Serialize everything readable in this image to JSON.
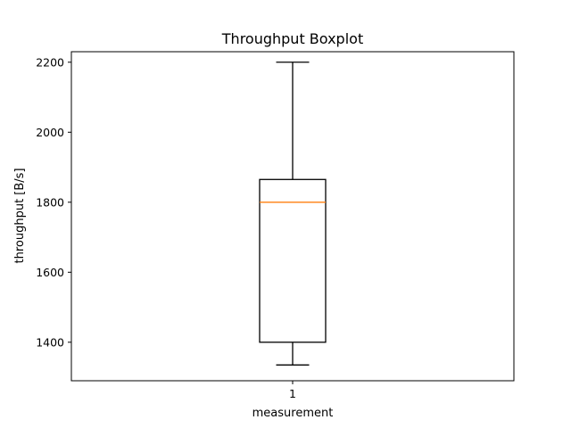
{
  "chart_data": {
    "type": "box",
    "title": "Throughput Boxplot",
    "xlabel": "measurement",
    "ylabel": "throughput [B/s]",
    "ylim": [
      1290,
      2230
    ],
    "yticks": [
      1400,
      1600,
      1800,
      2000,
      2200
    ],
    "grid": false,
    "categories": [
      "1"
    ],
    "boxes": [
      {
        "label": "1",
        "whisker_low": 1335,
        "q1": 1400,
        "median": 1800,
        "q3": 1865,
        "whisker_high": 2200
      }
    ],
    "colors": {
      "box": "#000000",
      "median": "#ff7f0e"
    }
  }
}
